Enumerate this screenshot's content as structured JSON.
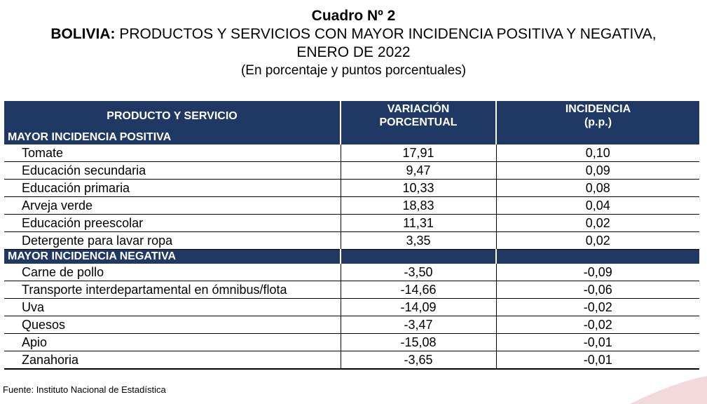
{
  "title": "Cuadro Nº 2",
  "subtitle_bold": "BOLIVIA:",
  "subtitle_rest": " PRODUCTOS Y SERVICIOS CON MAYOR INCIDENCIA POSITIVA Y NEGATIVA,",
  "subtitle_line2": "ENERO DE 2022",
  "units": "(En porcentaje y puntos porcentuales)",
  "headers": {
    "product": "PRODUCTO Y SERVICIO",
    "variation_l1": "VARIACIÓN",
    "variation_l2": "PORCENTUAL",
    "incidence_l1": "INCIDENCIA",
    "incidence_l2": "(p.p.)"
  },
  "sections": [
    {
      "label": "MAYOR INCIDENCIA POSITIVA",
      "rows": [
        {
          "name": "Tomate",
          "variation": "17,91",
          "incidence": "0,10"
        },
        {
          "name": "Educación secundaria",
          "variation": "9,47",
          "incidence": "0,09"
        },
        {
          "name": "Educación primaria",
          "variation": "10,33",
          "incidence": "0,08"
        },
        {
          "name": "Arveja verde",
          "variation": "18,83",
          "incidence": "0,04"
        },
        {
          "name": "Educación preescolar",
          "variation": "11,31",
          "incidence": "0,02"
        },
        {
          "name": "Detergente para lavar ropa",
          "variation": "3,35",
          "incidence": "0,02"
        }
      ]
    },
    {
      "label": "MAYOR INCIDENCIA NEGATIVA",
      "rows": [
        {
          "name": "Carne de pollo",
          "variation": "-3,50",
          "incidence": "-0,09"
        },
        {
          "name": "Transporte interdepartamental en ómnibus/flota",
          "variation": "-14,66",
          "incidence": "-0,06"
        },
        {
          "name": "Uva",
          "variation": "-14,09",
          "incidence": "-0,02"
        },
        {
          "name": "Quesos",
          "variation": "-3,47",
          "incidence": "-0,02"
        },
        {
          "name": "Apio",
          "variation": "-15,08",
          "incidence": "-0,01"
        },
        {
          "name": "Zanahoria",
          "variation": "-3,65",
          "incidence": "-0,01"
        }
      ]
    }
  ],
  "source": "Fuente: Instituto Nacional de Estadística",
  "colors": {
    "header_bg": "#1f3864",
    "swoosh": "#f3d9dc"
  }
}
